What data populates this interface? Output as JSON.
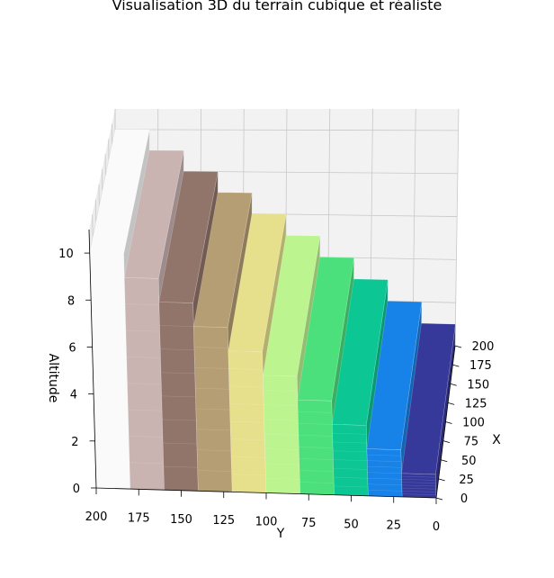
{
  "chart_data": {
    "type": "bar3d",
    "title": "Visualisation 3D du terrain cubique et réaliste",
    "xlabel": "X",
    "ylabel": "Y",
    "zlabel": "Altitude",
    "xlim": [
      0,
      200
    ],
    "ylim": [
      0,
      200
    ],
    "zlim": [
      0,
      11
    ],
    "x_ticks": [
      "0",
      "25",
      "50",
      "75",
      "100",
      "125",
      "150",
      "175",
      "200"
    ],
    "y_ticks": [
      "0",
      "25",
      "50",
      "75",
      "100",
      "125",
      "150",
      "175",
      "200"
    ],
    "z_ticks": [
      "0",
      "2",
      "4",
      "6",
      "8",
      "10"
    ],
    "grid": true,
    "colormap": "terrain",
    "steps": [
      {
        "y_start": 0,
        "y_end": 20,
        "altitude": 1,
        "color": "#36389a"
      },
      {
        "y_start": 20,
        "y_end": 40,
        "altitude": 2,
        "color": "#1782e8"
      },
      {
        "y_start": 40,
        "y_end": 60,
        "altitude": 3,
        "color": "#0cc694"
      },
      {
        "y_start": 60,
        "y_end": 80,
        "altitude": 4,
        "color": "#4ce07c"
      },
      {
        "y_start": 80,
        "y_end": 100,
        "altitude": 5,
        "color": "#bcf48f"
      },
      {
        "y_start": 100,
        "y_end": 120,
        "altitude": 6,
        "color": "#e6e08c"
      },
      {
        "y_start": 120,
        "y_end": 140,
        "altitude": 7,
        "color": "#b69e74"
      },
      {
        "y_start": 140,
        "y_end": 160,
        "altitude": 8,
        "color": "#92756a"
      },
      {
        "y_start": 160,
        "y_end": 180,
        "altitude": 9,
        "color": "#c9b4b2"
      },
      {
        "y_start": 180,
        "y_end": 200,
        "altitude": 10,
        "color": "#fafafa"
      }
    ]
  }
}
